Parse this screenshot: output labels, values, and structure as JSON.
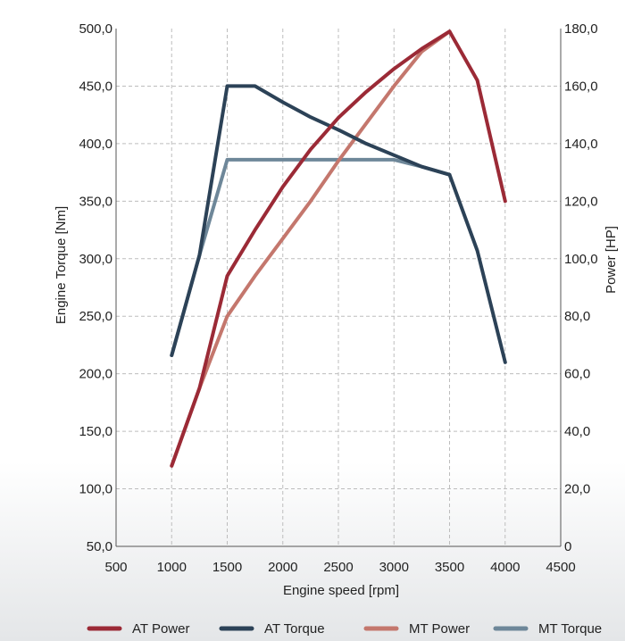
{
  "chart_data": {
    "type": "line",
    "title": "",
    "xlabel": "Engine speed [rpm]",
    "ylabel": "Engine Torque [Nm]",
    "y2label": "Power [HP]",
    "xlim": [
      500,
      4500
    ],
    "ylim": [
      50,
      500
    ],
    "y2lim": [
      0,
      180
    ],
    "x_ticks": [
      "500",
      "1000",
      "1500",
      "2000",
      "2500",
      "3000",
      "3500",
      "4000",
      "4500"
    ],
    "y_ticks": [
      "50,0",
      "100,0",
      "150,0",
      "200,0",
      "250,0",
      "300,0",
      "350,0",
      "400,0",
      "450,0",
      "500,0"
    ],
    "y2_ticks": [
      "0",
      "20,0",
      "40,0",
      "60,0",
      "80,0",
      "100,0",
      "120,0",
      "140,0",
      "160,0",
      "180,0"
    ],
    "grid": true,
    "legend_position": "bottom",
    "series": [
      {
        "name": "AT Power",
        "axis": "right",
        "color": "#9b2a36",
        "x": [
          1000,
          1250,
          1500,
          1750,
          2000,
          2250,
          2500,
          2750,
          3000,
          3250,
          3500,
          3750,
          4000
        ],
        "y": [
          28,
          55,
          94,
          110,
          125,
          138,
          149,
          158,
          166,
          173,
          179,
          162,
          120
        ]
      },
      {
        "name": "AT Torque",
        "axis": "left",
        "color": "#2c4257",
        "x": [
          1000,
          1250,
          1500,
          1750,
          2000,
          2250,
          2500,
          2750,
          3000,
          3250,
          3500,
          3750,
          4000
        ],
        "y": [
          216,
          303,
          450,
          450,
          436,
          423,
          412,
          400,
          390,
          380,
          373,
          307,
          210
        ]
      },
      {
        "name": "MT Power",
        "axis": "right",
        "color": "#c4776d",
        "x": [
          1000,
          1250,
          1500,
          1750,
          2000,
          2250,
          2500,
          2750,
          3000,
          3250,
          3500
        ],
        "y": [
          28,
          55,
          80,
          94,
          107,
          120,
          134,
          147,
          160,
          172,
          179
        ]
      },
      {
        "name": "MT Torque",
        "axis": "left",
        "color": "#6e8799",
        "x": [
          1000,
          1250,
          1500,
          1750,
          2000,
          2250,
          2500,
          2750,
          3000,
          3250,
          3500
        ],
        "y": [
          216,
          303,
          386,
          386,
          386,
          386,
          386,
          386,
          386,
          380,
          373
        ]
      }
    ]
  }
}
